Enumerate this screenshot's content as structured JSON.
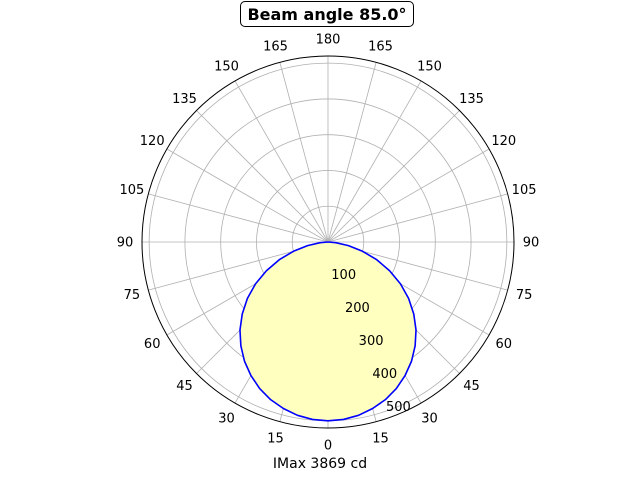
{
  "chart_data": {
    "type": "polar",
    "title": "Beam angle 85.0°",
    "xlabel": "IMax 3869 cd",
    "angle_tick_labels": [
      "0",
      "15",
      "30",
      "45",
      "60",
      "75",
      "90",
      "105",
      "120",
      "135",
      "150",
      "165",
      "180",
      "165",
      "150",
      "135",
      "120",
      "105",
      "90",
      "75",
      "60",
      "45",
      "30",
      "15"
    ],
    "radial_tick_labels": [
      "100",
      "200",
      "300",
      "400",
      "500"
    ],
    "rlim": [
      0,
      520
    ],
    "grid": true,
    "series": [
      {
        "angles": [
          0,
          5,
          10,
          15,
          20,
          25,
          30,
          35,
          40,
          45,
          50,
          55,
          60,
          65,
          70,
          75,
          80,
          85,
          90
        ],
        "values": [
          500,
          498,
          492,
          482,
          469,
          452,
          431,
          407,
          379,
          348,
          313,
          275,
          234,
          190,
          145,
          100,
          58,
          22,
          0
        ],
        "line_color": "#0000ff",
        "fill_color": "#ffffbf"
      }
    ]
  }
}
